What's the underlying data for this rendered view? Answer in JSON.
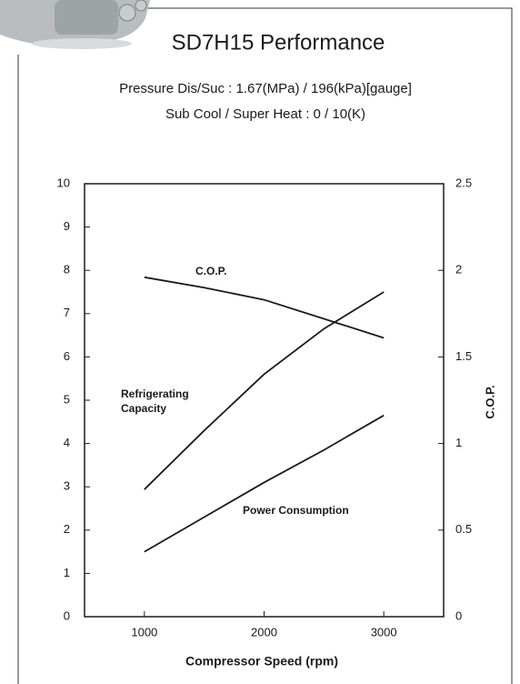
{
  "chart_data": {
    "type": "line",
    "title": "SD7H15 Performance",
    "subtitle": [
      "Pressure Dis/Suc : 1.67(MPa) / 196(kPa)[gauge]",
      "Sub Cool / Super Heat : 0 / 10(K)"
    ],
    "x_label": "Compressor Speed (rpm)",
    "y2_label": "C.O.P.",
    "x": [
      1000,
      1500,
      2000,
      2500,
      3000
    ],
    "series": [
      {
        "name": "C.O.P.",
        "color": "#1a1a1a",
        "axis": "y2",
        "values": [
          1.96,
          1.9,
          1.83,
          1.72,
          1.61
        ]
      },
      {
        "name": "Refrigerating Capacity",
        "color": "#1a1a1a",
        "values": [
          2.94,
          4.3,
          5.6,
          6.65,
          7.5
        ]
      },
      {
        "name": "Power Consumption",
        "color": "#1a1a1a",
        "values": [
          1.5,
          2.3,
          3.1,
          3.85,
          4.65
        ]
      }
    ],
    "xlim": [
      500,
      3500
    ],
    "xticks": [
      1000,
      2000,
      3000
    ],
    "ylim": [
      0,
      10
    ],
    "yticks": [
      0,
      1,
      2,
      3,
      4,
      5,
      6,
      7,
      8,
      9,
      10
    ],
    "y2lim": [
      0,
      2.5
    ],
    "y2ticks": [
      0,
      0.5,
      1,
      1.5,
      2,
      2.5
    ],
    "grid": false
  }
}
